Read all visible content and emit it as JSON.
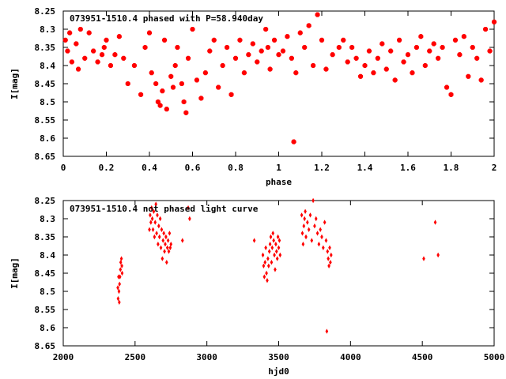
{
  "chart_data": [
    {
      "type": "scatter",
      "title": "073951-1510.4 phased with P=58.940day",
      "xlabel": "phase",
      "ylabel": "I[mag]",
      "xlim": [
        0,
        2
      ],
      "ylim": [
        8.65,
        8.25
      ],
      "y_inverted": true,
      "marker_color": "#ff0000",
      "marker": "filled-octagon",
      "xticks": [
        "0",
        "0.2",
        "0.4",
        "0.6",
        "0.8",
        "1",
        "1.2",
        "1.4",
        "1.6",
        "1.8",
        "2"
      ],
      "yticks": [
        "8.25",
        "8.3",
        "8.35",
        "8.4",
        "8.45",
        "8.5",
        "8.55",
        "8.6",
        "8.65"
      ],
      "series": [
        {
          "x": [
            0.01,
            0.02,
            0.03,
            0.04,
            0.06,
            0.07,
            0.08,
            0.1,
            0.12,
            0.14,
            0.16,
            0.18,
            0.19,
            0.2,
            0.22,
            0.24,
            0.26,
            0.28,
            0.3,
            0.33,
            0.36,
            0.38,
            0.4,
            0.41,
            0.43,
            0.44,
            0.45,
            0.46,
            0.47,
            0.48,
            0.5,
            0.51,
            0.52,
            0.53,
            0.55,
            0.56,
            0.57,
            0.58,
            0.6,
            0.62,
            0.64,
            0.66,
            0.68,
            0.7,
            0.72,
            0.74,
            0.76,
            0.78,
            0.8,
            0.82,
            0.84,
            0.86,
            0.88,
            0.9,
            0.92,
            0.94,
            0.95,
            0.96,
            0.98,
            1.0,
            1.02,
            1.04,
            1.06,
            1.07,
            1.08,
            1.1,
            1.12,
            1.14,
            1.16,
            1.18,
            1.2,
            1.22,
            1.25,
            1.28,
            1.3,
            1.32,
            1.34,
            1.36,
            1.38,
            1.4,
            1.42,
            1.44,
            1.46,
            1.48,
            1.5,
            1.52,
            1.54,
            1.56,
            1.58,
            1.6,
            1.62,
            1.64,
            1.66,
            1.68,
            1.7,
            1.72,
            1.74,
            1.76,
            1.78,
            1.8,
            1.82,
            1.84,
            1.86,
            1.88,
            1.9,
            1.92,
            1.94,
            1.96,
            1.98,
            2.0
          ],
          "y": [
            8.33,
            8.36,
            8.31,
            8.39,
            8.34,
            8.41,
            8.3,
            8.38,
            8.31,
            8.36,
            8.39,
            8.37,
            8.35,
            8.33,
            8.4,
            8.37,
            8.32,
            8.38,
            8.45,
            8.4,
            8.48,
            8.35,
            8.31,
            8.42,
            8.45,
            8.5,
            8.51,
            8.47,
            8.33,
            8.52,
            8.43,
            8.46,
            8.4,
            8.35,
            8.45,
            8.5,
            8.53,
            8.38,
            8.3,
            8.44,
            8.49,
            8.42,
            8.36,
            8.33,
            8.46,
            8.4,
            8.35,
            8.48,
            8.38,
            8.33,
            8.42,
            8.37,
            8.34,
            8.39,
            8.36,
            8.3,
            8.35,
            8.41,
            8.33,
            8.37,
            8.36,
            8.32,
            8.38,
            8.61,
            8.42,
            8.31,
            8.35,
            8.29,
            8.4,
            8.26,
            8.33,
            8.41,
            8.37,
            8.35,
            8.33,
            8.39,
            8.35,
            8.38,
            8.43,
            8.4,
            8.36,
            8.42,
            8.38,
            8.34,
            8.41,
            8.36,
            8.44,
            8.33,
            8.39,
            8.37,
            8.42,
            8.35,
            8.32,
            8.4,
            8.36,
            8.34,
            8.38,
            8.35,
            8.46,
            8.48,
            8.33,
            8.37,
            8.32,
            8.43,
            8.35,
            8.38,
            8.44,
            8.3,
            8.36,
            8.28
          ]
        }
      ]
    },
    {
      "type": "scatter",
      "title": "073951-1510.4 not phased light curve",
      "xlabel": "hjd0",
      "ylabel": "I[mag]",
      "xlim": [
        2000,
        5000
      ],
      "ylim": [
        8.65,
        8.25
      ],
      "y_inverted": true,
      "marker_color": "#ff0000",
      "marker": "filled-diamond",
      "xticks": [
        "2000",
        "2500",
        "3000",
        "3500",
        "4000",
        "4500",
        "5000"
      ],
      "yticks": [
        "8.25",
        "8.3",
        "8.35",
        "8.4",
        "8.45",
        "8.5",
        "8.55",
        "8.6",
        "8.65"
      ],
      "series": [
        {
          "x": [
            2380,
            2382,
            2385,
            2388,
            2390,
            2392,
            2395,
            2398,
            2400,
            2405,
            2408,
            2410,
            2600,
            2605,
            2610,
            2615,
            2620,
            2625,
            2630,
            2635,
            2640,
            2645,
            2650,
            2655,
            2660,
            2665,
            2670,
            2675,
            2680,
            2685,
            2690,
            2695,
            2700,
            2705,
            2710,
            2715,
            2720,
            2725,
            2730,
            2735,
            2740,
            2745,
            2750,
            2830,
            2870,
            2880,
            3330,
            3390,
            3395,
            3400,
            3405,
            3410,
            3415,
            3420,
            3425,
            3430,
            3435,
            3440,
            3445,
            3450,
            3455,
            3460,
            3465,
            3470,
            3475,
            3480,
            3485,
            3490,
            3495,
            3500,
            3505,
            3510,
            3660,
            3665,
            3670,
            3675,
            3680,
            3685,
            3690,
            3700,
            3710,
            3720,
            3730,
            3740,
            3750,
            3760,
            3770,
            3780,
            3790,
            3800,
            3810,
            3820,
            3830,
            3835,
            3840,
            3845,
            3850,
            3855,
            3860,
            3865,
            4510,
            4590,
            4610
          ],
          "y": [
            8.49,
            8.52,
            8.46,
            8.5,
            8.53,
            8.48,
            8.46,
            8.44,
            8.42,
            8.41,
            8.43,
            8.45,
            8.33,
            8.29,
            8.31,
            8.27,
            8.3,
            8.33,
            8.28,
            8.35,
            8.31,
            8.26,
            8.34,
            8.29,
            8.37,
            8.32,
            8.35,
            8.3,
            8.38,
            8.33,
            8.41,
            8.36,
            8.34,
            8.39,
            8.37,
            8.35,
            8.42,
            8.38,
            8.36,
            8.39,
            8.34,
            8.38,
            8.37,
            8.36,
            8.27,
            8.3,
            8.36,
            8.4,
            8.43,
            8.46,
            8.42,
            8.38,
            8.45,
            8.47,
            8.41,
            8.43,
            8.39,
            8.37,
            8.35,
            8.42,
            8.38,
            8.34,
            8.36,
            8.4,
            8.44,
            8.37,
            8.39,
            8.41,
            8.35,
            8.38,
            8.36,
            8.4,
            8.29,
            8.34,
            8.37,
            8.32,
            8.3,
            8.28,
            8.35,
            8.31,
            8.33,
            8.29,
            8.36,
            8.25,
            8.32,
            8.3,
            8.34,
            8.37,
            8.33,
            8.35,
            8.38,
            8.31,
            8.36,
            8.61,
            8.39,
            8.41,
            8.43,
            8.38,
            8.42,
            8.4,
            8.41,
            8.31,
            8.4
          ]
        }
      ]
    }
  ]
}
